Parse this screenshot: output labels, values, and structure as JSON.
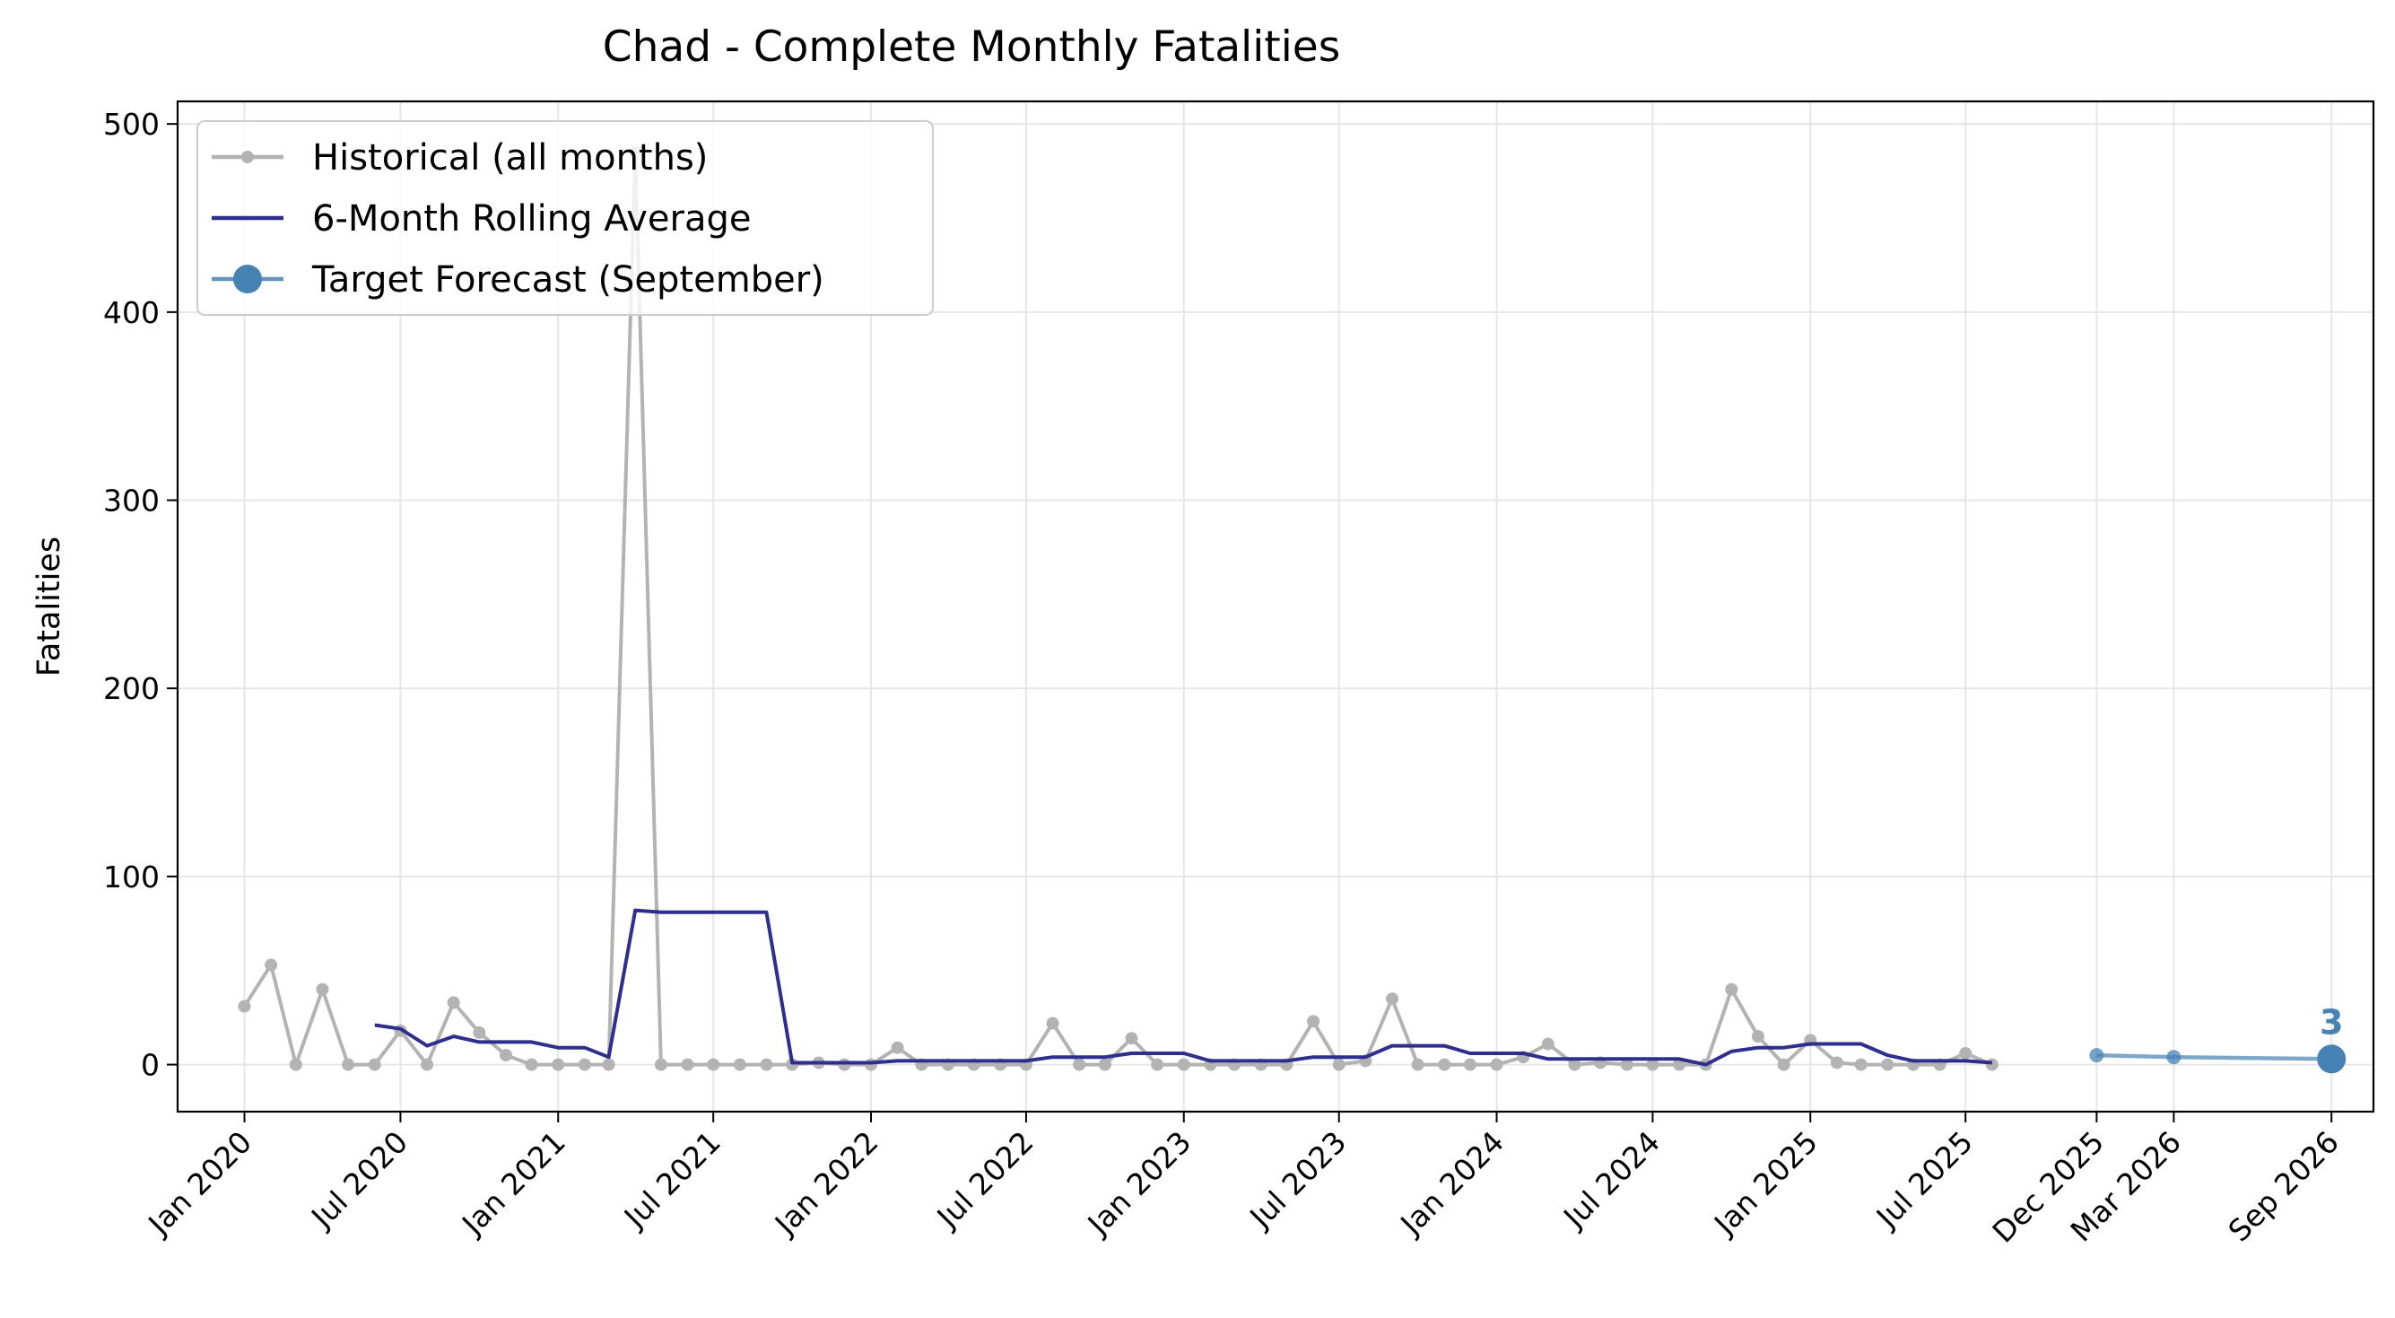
{
  "chart_data": {
    "type": "line",
    "title": "Chad - Complete Monthly Fatalities",
    "xlabel": "",
    "ylabel": "Fatalities",
    "ylim": [
      -25,
      512
    ],
    "xlim": [
      "2019-10-15",
      "2026-10-20"
    ],
    "grid": true,
    "legend_position": "top-left",
    "y_ticks": [
      0,
      100,
      200,
      300,
      400,
      500
    ],
    "x_ticks": [
      {
        "date": "2020-01-01",
        "label": "Jan 2020"
      },
      {
        "date": "2020-07-01",
        "label": "Jul 2020"
      },
      {
        "date": "2021-01-01",
        "label": "Jan 2021"
      },
      {
        "date": "2021-07-01",
        "label": "Jul 2021"
      },
      {
        "date": "2022-01-01",
        "label": "Jan 2022"
      },
      {
        "date": "2022-07-01",
        "label": "Jul 2022"
      },
      {
        "date": "2023-01-01",
        "label": "Jan 2023"
      },
      {
        "date": "2023-07-01",
        "label": "Jul 2023"
      },
      {
        "date": "2024-01-01",
        "label": "Jan 2024"
      },
      {
        "date": "2024-07-01",
        "label": "Jul 2024"
      },
      {
        "date": "2025-01-01",
        "label": "Jan 2025"
      },
      {
        "date": "2025-07-01",
        "label": "Jul 2025"
      },
      {
        "date": "2025-12-01",
        "label": "Dec 2025"
      },
      {
        "date": "2026-03-01",
        "label": "Mar 2026"
      },
      {
        "date": "2026-09-01",
        "label": "Sep 2026"
      }
    ],
    "series": [
      {
        "name": "Historical (all months)",
        "color": "#b3b3b3",
        "marker": "small-circle",
        "points": [
          [
            "2020-01-01",
            31
          ],
          [
            "2020-02-01",
            53
          ],
          [
            "2020-03-01",
            0
          ],
          [
            "2020-04-01",
            40
          ],
          [
            "2020-05-01",
            0
          ],
          [
            "2020-06-01",
            0
          ],
          [
            "2020-07-01",
            18
          ],
          [
            "2020-08-01",
            0
          ],
          [
            "2020-09-01",
            33
          ],
          [
            "2020-10-01",
            17
          ],
          [
            "2020-11-01",
            5
          ],
          [
            "2020-12-01",
            0
          ],
          [
            "2021-01-01",
            0
          ],
          [
            "2021-02-01",
            0
          ],
          [
            "2021-03-01",
            0
          ],
          [
            "2021-04-01",
            485
          ],
          [
            "2021-05-01",
            0
          ],
          [
            "2021-06-01",
            0
          ],
          [
            "2021-07-01",
            0
          ],
          [
            "2021-08-01",
            0
          ],
          [
            "2021-09-01",
            0
          ],
          [
            "2021-10-01",
            0
          ],
          [
            "2021-11-01",
            1
          ],
          [
            "2021-12-01",
            0
          ],
          [
            "2022-01-01",
            0
          ],
          [
            "2022-02-01",
            9
          ],
          [
            "2022-03-01",
            0
          ],
          [
            "2022-04-01",
            0
          ],
          [
            "2022-05-01",
            0
          ],
          [
            "2022-06-01",
            0
          ],
          [
            "2022-07-01",
            0
          ],
          [
            "2022-08-01",
            22
          ],
          [
            "2022-09-01",
            0
          ],
          [
            "2022-10-01",
            0
          ],
          [
            "2022-11-01",
            14
          ],
          [
            "2022-12-01",
            0
          ],
          [
            "2023-01-01",
            0
          ],
          [
            "2023-02-01",
            0
          ],
          [
            "2023-03-01",
            0
          ],
          [
            "2023-04-01",
            0
          ],
          [
            "2023-05-01",
            0
          ],
          [
            "2023-06-01",
            23
          ],
          [
            "2023-07-01",
            0
          ],
          [
            "2023-08-01",
            2
          ],
          [
            "2023-09-01",
            35
          ],
          [
            "2023-10-01",
            0
          ],
          [
            "2023-11-01",
            0
          ],
          [
            "2023-12-01",
            0
          ],
          [
            "2024-01-01",
            0
          ],
          [
            "2024-02-01",
            4
          ],
          [
            "2024-03-01",
            11
          ],
          [
            "2024-04-01",
            0
          ],
          [
            "2024-05-01",
            1
          ],
          [
            "2024-06-01",
            0
          ],
          [
            "2024-07-01",
            0
          ],
          [
            "2024-08-01",
            0
          ],
          [
            "2024-09-01",
            0
          ],
          [
            "2024-10-01",
            40
          ],
          [
            "2024-11-01",
            15
          ],
          [
            "2024-12-01",
            0
          ],
          [
            "2025-01-01",
            13
          ],
          [
            "2025-02-01",
            1
          ],
          [
            "2025-03-01",
            0
          ],
          [
            "2025-04-01",
            0
          ],
          [
            "2025-05-01",
            0
          ],
          [
            "2025-06-01",
            0
          ],
          [
            "2025-07-01",
            6
          ],
          [
            "2025-08-01",
            0
          ]
        ]
      },
      {
        "name": "6-Month Rolling Average",
        "color": "#2e2e8f",
        "marker": "none",
        "points": [
          [
            "2020-06-01",
            21
          ],
          [
            "2020-07-01",
            19
          ],
          [
            "2020-08-01",
            10
          ],
          [
            "2020-09-01",
            15
          ],
          [
            "2020-10-01",
            12
          ],
          [
            "2020-11-01",
            12
          ],
          [
            "2020-12-01",
            12
          ],
          [
            "2021-01-01",
            9
          ],
          [
            "2021-02-01",
            9
          ],
          [
            "2021-03-01",
            4
          ],
          [
            "2021-04-01",
            82
          ],
          [
            "2021-05-01",
            81
          ],
          [
            "2021-06-01",
            81
          ],
          [
            "2021-07-01",
            81
          ],
          [
            "2021-08-01",
            81
          ],
          [
            "2021-09-01",
            81
          ],
          [
            "2021-10-01",
            1
          ],
          [
            "2021-11-01",
            1
          ],
          [
            "2021-12-01",
            1
          ],
          [
            "2022-01-01",
            1
          ],
          [
            "2022-02-01",
            2
          ],
          [
            "2022-03-01",
            2
          ],
          [
            "2022-04-01",
            2
          ],
          [
            "2022-05-01",
            2
          ],
          [
            "2022-06-01",
            2
          ],
          [
            "2022-07-01",
            2
          ],
          [
            "2022-08-01",
            4
          ],
          [
            "2022-09-01",
            4
          ],
          [
            "2022-10-01",
            4
          ],
          [
            "2022-11-01",
            6
          ],
          [
            "2022-12-01",
            6
          ],
          [
            "2023-01-01",
            6
          ],
          [
            "2023-02-01",
            2
          ],
          [
            "2023-03-01",
            2
          ],
          [
            "2023-04-01",
            2
          ],
          [
            "2023-05-01",
            2
          ],
          [
            "2023-06-01",
            4
          ],
          [
            "2023-07-01",
            4
          ],
          [
            "2023-08-01",
            4
          ],
          [
            "2023-09-01",
            10
          ],
          [
            "2023-10-01",
            10
          ],
          [
            "2023-11-01",
            10
          ],
          [
            "2023-12-01",
            6
          ],
          [
            "2024-01-01",
            6
          ],
          [
            "2024-02-01",
            6
          ],
          [
            "2024-03-01",
            3
          ],
          [
            "2024-04-01",
            3
          ],
          [
            "2024-05-01",
            3
          ],
          [
            "2024-06-01",
            3
          ],
          [
            "2024-07-01",
            3
          ],
          [
            "2024-08-01",
            3
          ],
          [
            "2024-09-01",
            0
          ],
          [
            "2024-10-01",
            7
          ],
          [
            "2024-11-01",
            9
          ],
          [
            "2024-12-01",
            9
          ],
          [
            "2025-01-01",
            11
          ],
          [
            "2025-02-01",
            11
          ],
          [
            "2025-03-01",
            11
          ],
          [
            "2025-04-01",
            5
          ],
          [
            "2025-05-01",
            2
          ],
          [
            "2025-06-01",
            2
          ],
          [
            "2025-07-01",
            2
          ],
          [
            "2025-08-01",
            1
          ]
        ]
      },
      {
        "name": "Target Forecast (September)",
        "color": "#4682b4",
        "marker": "circle",
        "points": [
          [
            "2025-12-01",
            5
          ],
          [
            "2026-03-01",
            4
          ],
          [
            "2026-09-01",
            3
          ]
        ],
        "annotation": {
          "date": "2026-09-01",
          "value": 3,
          "label": "3"
        }
      }
    ]
  }
}
